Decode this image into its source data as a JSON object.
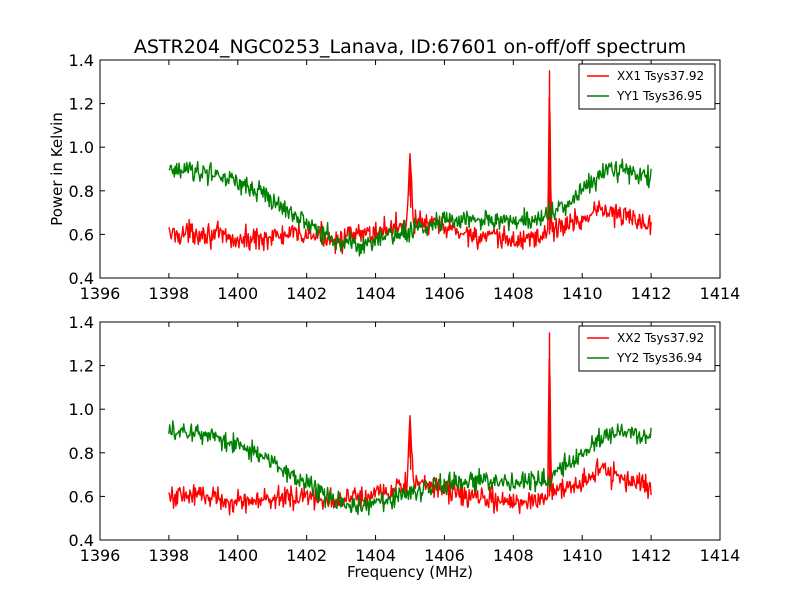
{
  "title": "ASTR204_NGC0253_Lanava, ID:67601 on-off/off spectrum",
  "colors": {
    "red": "#ff0000",
    "green": "#008000",
    "axes": "#000000",
    "background": "#ffffff"
  },
  "chart_data": [
    {
      "type": "line",
      "xlabel": "",
      "ylabel": "Power in Kelvin",
      "xlim": [
        1396,
        1414
      ],
      "ylim": [
        0.4,
        1.4
      ],
      "xticks": [
        "1396",
        "1398",
        "1400",
        "1402",
        "1404",
        "1406",
        "1408",
        "1410",
        "1412",
        "1414"
      ],
      "yticks": [
        "0.4",
        "0.6",
        "0.8",
        "1.0",
        "1.2",
        "1.4"
      ],
      "grid": false,
      "legend_position": "top-right",
      "series": [
        {
          "name": "XX1 Tsys37.92",
          "color": "#ff0000",
          "x_range": [
            1398,
            1412
          ],
          "points": [
            [
              1398,
              0.6
            ],
            [
              1399,
              0.61
            ],
            [
              1400,
              0.57
            ],
            [
              1401,
              0.59
            ],
            [
              1402,
              0.6
            ],
            [
              1403,
              0.58
            ],
            [
              1404,
              0.61
            ],
            [
              1404.9,
              0.65
            ],
            [
              1405,
              0.97
            ],
            [
              1405.1,
              0.66
            ],
            [
              1406,
              0.63
            ],
            [
              1407,
              0.59
            ],
            [
              1408,
              0.57
            ],
            [
              1409,
              0.6
            ],
            [
              1409.05,
              1.35
            ],
            [
              1409.1,
              0.62
            ],
            [
              1410,
              0.67
            ],
            [
              1410.5,
              0.72
            ],
            [
              1411,
              0.69
            ],
            [
              1412,
              0.65
            ]
          ],
          "noise": 0.04
        },
        {
          "name": "YY1 Tsys36.95",
          "color": "#008000",
          "x_range": [
            1398,
            1412
          ],
          "points": [
            [
              1398,
              0.9
            ],
            [
              1399,
              0.89
            ],
            [
              1400,
              0.84
            ],
            [
              1401,
              0.76
            ],
            [
              1402,
              0.65
            ],
            [
              1403,
              0.57
            ],
            [
              1403.5,
              0.55
            ],
            [
              1404,
              0.57
            ],
            [
              1405,
              0.62
            ],
            [
              1406,
              0.66
            ],
            [
              1407,
              0.67
            ],
            [
              1408,
              0.66
            ],
            [
              1409,
              0.68
            ],
            [
              1410,
              0.8
            ],
            [
              1410.7,
              0.89
            ],
            [
              1411,
              0.9
            ],
            [
              1412,
              0.86
            ]
          ],
          "noise": 0.035
        }
      ]
    },
    {
      "type": "line",
      "xlabel": "Frequency (MHz)",
      "ylabel": "",
      "xlim": [
        1396,
        1414
      ],
      "ylim": [
        0.4,
        1.4
      ],
      "xticks": [
        "1396",
        "1398",
        "1400",
        "1402",
        "1404",
        "1406",
        "1408",
        "1410",
        "1412",
        "1414"
      ],
      "yticks": [
        "0.4",
        "0.6",
        "0.8",
        "1.0",
        "1.2",
        "1.4"
      ],
      "grid": false,
      "legend_position": "top-right",
      "series": [
        {
          "name": "XX2 Tsys37.92",
          "color": "#ff0000",
          "x_range": [
            1398,
            1412
          ],
          "points": [
            [
              1398,
              0.6
            ],
            [
              1399,
              0.61
            ],
            [
              1400,
              0.57
            ],
            [
              1401,
              0.59
            ],
            [
              1402,
              0.6
            ],
            [
              1403,
              0.58
            ],
            [
              1404,
              0.61
            ],
            [
              1404.9,
              0.65
            ],
            [
              1405,
              0.97
            ],
            [
              1405.1,
              0.66
            ],
            [
              1406,
              0.63
            ],
            [
              1407,
              0.59
            ],
            [
              1408,
              0.57
            ],
            [
              1409,
              0.6
            ],
            [
              1409.05,
              1.35
            ],
            [
              1409.1,
              0.62
            ],
            [
              1410,
              0.67
            ],
            [
              1410.5,
              0.72
            ],
            [
              1411,
              0.69
            ],
            [
              1412,
              0.65
            ]
          ],
          "noise": 0.04
        },
        {
          "name": "YY2 Tsys36.94",
          "color": "#008000",
          "x_range": [
            1398,
            1412
          ],
          "points": [
            [
              1398,
              0.9
            ],
            [
              1399,
              0.89
            ],
            [
              1400,
              0.84
            ],
            [
              1401,
              0.76
            ],
            [
              1402,
              0.65
            ],
            [
              1403,
              0.57
            ],
            [
              1403.5,
              0.55
            ],
            [
              1404,
              0.57
            ],
            [
              1405,
              0.62
            ],
            [
              1406,
              0.66
            ],
            [
              1407,
              0.67
            ],
            [
              1408,
              0.66
            ],
            [
              1409,
              0.68
            ],
            [
              1410,
              0.8
            ],
            [
              1410.7,
              0.89
            ],
            [
              1411,
              0.9
            ],
            [
              1412,
              0.86
            ]
          ],
          "noise": 0.035
        }
      ]
    }
  ]
}
